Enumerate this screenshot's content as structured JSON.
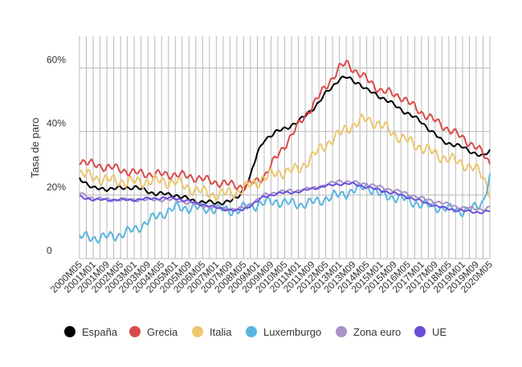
{
  "chart_data": {
    "type": "line",
    "title": "",
    "xlabel": "",
    "ylabel": "Tasa de paro",
    "ylim": [
      0,
      70
    ],
    "yticks": [
      {
        "value": 0,
        "label": "0"
      },
      {
        "value": 20,
        "label": "20%"
      },
      {
        "value": 40,
        "label": "40%"
      },
      {
        "value": 60,
        "label": "60%"
      }
    ],
    "xrange": [
      "2000M05",
      "2020M05"
    ],
    "xtick_labels": [
      "2000M05",
      "2001M01",
      "2001M09",
      "2002M05",
      "2003M01",
      "2003M09",
      "2004M05",
      "2005M01",
      "2005M09",
      "2006M05",
      "2007M01",
      "2007M09",
      "2008M05",
      "2009M01",
      "2009M09",
      "2010M05",
      "2011M01",
      "2011M09",
      "2012M05",
      "2013M01",
      "2013M09",
      "2014M05",
      "2015M01",
      "2015M09",
      "2016M05",
      "2017M01",
      "2017M09",
      "2018M05",
      "2019M01",
      "2019M09",
      "2020M05"
    ],
    "grid": true,
    "legend_position": "bottom",
    "series": [
      {
        "name": "España",
        "color": "#000000",
        "x": [
          "2000M05",
          "2001M01",
          "2002M01",
          "2003M01",
          "2004M01",
          "2005M01",
          "2006M01",
          "2007M01",
          "2007M09",
          "2008M01",
          "2008M05",
          "2008M09",
          "2009M01",
          "2009M05",
          "2010M01",
          "2011M01",
          "2012M01",
          "2012M05",
          "2013M01",
          "2013M05",
          "2014M01",
          "2014M05",
          "2015M01",
          "2016M01",
          "2017M01",
          "2018M01",
          "2019M01",
          "2019M09",
          "2020M01",
          "2020M05"
        ],
        "values": [
          25.5,
          22,
          22,
          22.5,
          20.5,
          20,
          18,
          17.5,
          18,
          19,
          22,
          26,
          33,
          37.5,
          40,
          43,
          49,
          52,
          56.5,
          57,
          55,
          53,
          51,
          47,
          43,
          37,
          35,
          33,
          32,
          34
        ]
      },
      {
        "name": "Grecia",
        "color": "#d94a4a",
        "x": [
          "2000M05",
          "2001M01",
          "2002M01",
          "2003M01",
          "2004M01",
          "2005M01",
          "2006M01",
          "2007M01",
          "2008M01",
          "2008M05",
          "2009M01",
          "2009M05",
          "2010M01",
          "2011M01",
          "2011M09",
          "2012M05",
          "2013M01",
          "2013M05",
          "2014M01",
          "2015M01",
          "2016M01",
          "2017M01",
          "2018M01",
          "2019M01",
          "2019M09",
          "2020M01",
          "2020M05"
        ],
        "values": [
          31,
          29.5,
          28.5,
          27,
          26.5,
          26.5,
          25.5,
          24,
          23,
          22.5,
          24.5,
          26,
          32.5,
          42,
          48,
          54,
          60,
          61.5,
          58,
          53,
          51,
          46,
          42,
          38,
          35,
          33,
          30
        ]
      },
      {
        "name": "Italia",
        "color": "#ecc76e",
        "x": [
          "2000M05",
          "2001M01",
          "2002M01",
          "2003M01",
          "2004M01",
          "2005M01",
          "2006M01",
          "2007M01",
          "2008M01",
          "2008M05",
          "2009M01",
          "2009M05",
          "2010M01",
          "2011M01",
          "2011M09",
          "2012M05",
          "2013M01",
          "2013M05",
          "2014M01",
          "2014M05",
          "2015M01",
          "2016M01",
          "2017M01",
          "2018M01",
          "2019M01",
          "2019M09",
          "2020M01",
          "2020M05"
        ],
        "values": [
          27,
          25.5,
          24.5,
          24,
          24.5,
          24,
          21.5,
          20,
          21,
          22,
          24,
          25.5,
          27,
          28,
          32,
          36,
          39,
          41,
          43,
          44,
          42,
          38,
          35,
          32,
          30,
          28,
          26,
          21
        ]
      },
      {
        "name": "Luxemburgo",
        "color": "#5bb5e0",
        "x": [
          "2000M05",
          "2001M01",
          "2002M01",
          "2003M01",
          "2004M01",
          "2005M01",
          "2006M01",
          "2007M01",
          "2008M01",
          "2008M05",
          "2009M01",
          "2009M05",
          "2010M01",
          "2011M01",
          "2012M01",
          "2012M05",
          "2013M01",
          "2014M01",
          "2014M05",
          "2015M01",
          "2016M01",
          "2017M01",
          "2018M01",
          "2019M01",
          "2019M09",
          "2020M01",
          "2020M05"
        ],
        "values": [
          7,
          6.5,
          7,
          9,
          13,
          16,
          16,
          15.5,
          15,
          16,
          17,
          17.5,
          18,
          17,
          18,
          19,
          20,
          22,
          23,
          20,
          19,
          17,
          16,
          15,
          16,
          18,
          26
        ]
      },
      {
        "name": "Zona euro",
        "color": "#a893c9",
        "x": [
          "2000M05",
          "2001M01",
          "2002M01",
          "2003M01",
          "2004M01",
          "2005M01",
          "2006M01",
          "2007M01",
          "2008M01",
          "2008M05",
          "2009M01",
          "2009M05",
          "2010M01",
          "2011M01",
          "2012M01",
          "2013M01",
          "2013M09",
          "2014M05",
          "2015M01",
          "2016M01",
          "2017M01",
          "2018M01",
          "2019M01",
          "2020M01",
          "2020M05"
        ],
        "values": [
          20.5,
          19,
          18.5,
          18.5,
          18.5,
          18.5,
          17,
          16,
          15.5,
          16,
          18.5,
          20,
          21,
          21.5,
          22.5,
          24.5,
          24,
          23.5,
          22.5,
          21,
          19,
          17.5,
          16,
          15.5,
          16
        ]
      },
      {
        "name": "UE",
        "color": "#6b4fd8",
        "x": [
          "2000M05",
          "2001M01",
          "2002M01",
          "2003M01",
          "2004M01",
          "2005M01",
          "2006M01",
          "2007M01",
          "2008M01",
          "2008M05",
          "2009M01",
          "2009M05",
          "2010M01",
          "2011M01",
          "2012M01",
          "2013M01",
          "2013M09",
          "2014M05",
          "2015M01",
          "2016M01",
          "2017M01",
          "2018M01",
          "2019M01",
          "2020M01",
          "2020M05"
        ],
        "values": [
          19.5,
          18.5,
          18.5,
          18.5,
          19,
          19,
          17.5,
          16,
          15,
          15.5,
          18,
          19.5,
          20.5,
          21,
          22.5,
          23.5,
          23.5,
          22.5,
          21.5,
          20,
          18,
          16,
          15,
          14.5,
          15
        ]
      }
    ]
  }
}
